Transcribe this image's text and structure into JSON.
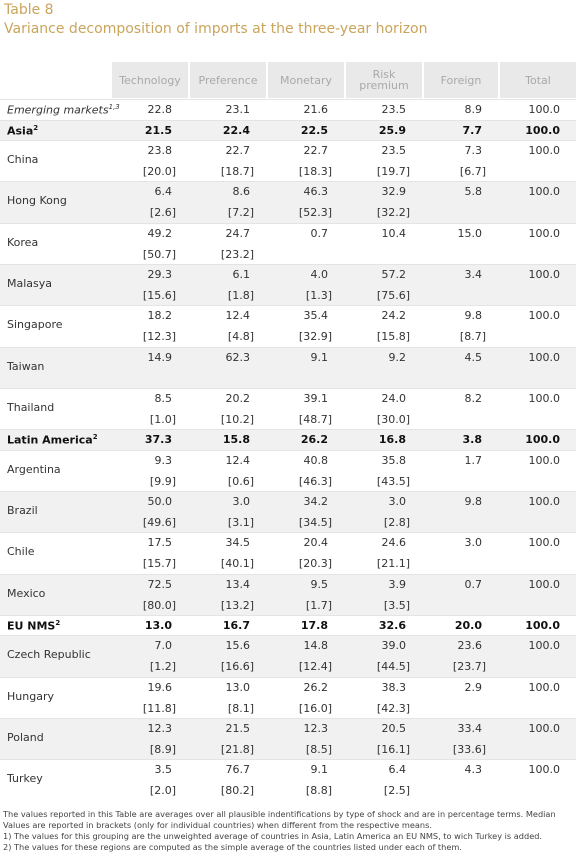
{
  "header": {
    "label": "Table 8",
    "title": "Variance decomposition of imports at the three-year horizon"
  },
  "table": {
    "columns": [
      "Technology",
      "Preference",
      "Monetary",
      "Risk premium",
      "Foreign",
      "Total"
    ],
    "rows": [
      {
        "name": "Emerging markets",
        "sup": "1,3",
        "style": "italic",
        "means": [
          "22.8",
          "23.1",
          "21.6",
          "23.5",
          "8.9",
          "100.0"
        ]
      },
      {
        "name": "Asia",
        "sup": "2",
        "style": "bold",
        "means": [
          "21.5",
          "22.4",
          "22.5",
          "25.9",
          "7.7",
          "100.0"
        ]
      },
      {
        "name": "China",
        "means": [
          "23.8",
          "22.7",
          "22.7",
          "23.5",
          "7.3",
          "100.0"
        ],
        "medians": [
          "[20.0]",
          "[18.7]",
          "[18.3]",
          "[19.7]",
          "[6.7]"
        ]
      },
      {
        "name": "Hong Kong",
        "means": [
          "6.4",
          "8.6",
          "46.3",
          "32.9",
          "5.8",
          "100.0"
        ],
        "medians": [
          "[2.6]",
          "[7.2]",
          "[52.3]",
          "[32.2]",
          null
        ]
      },
      {
        "name": "Korea",
        "means": [
          "49.2",
          "24.7",
          "0.7",
          "10.4",
          "15.0",
          "100.0"
        ],
        "medians": [
          "[50.7]",
          "[23.2]",
          null,
          null,
          null
        ]
      },
      {
        "name": "Malasya",
        "means": [
          "29.3",
          "6.1",
          "4.0",
          "57.2",
          "3.4",
          "100.0"
        ],
        "medians": [
          "[15.6]",
          "[1.8]",
          "[1.3]",
          "[75.6]",
          null
        ]
      },
      {
        "name": "Singapore",
        "means": [
          "18.2",
          "12.4",
          "35.4",
          "24.2",
          "9.8",
          "100.0"
        ],
        "medians": [
          "[12.3]",
          "[4.8]",
          "[32.9]",
          "[15.8]",
          "[8.7]"
        ]
      },
      {
        "name": "Taiwan",
        "means": [
          "14.9",
          "62.3",
          "9.1",
          "9.2",
          "4.5",
          "100.0"
        ],
        "medians": [
          null,
          null,
          null,
          null,
          null
        ]
      },
      {
        "name": "Thailand",
        "means": [
          "8.5",
          "20.2",
          "39.1",
          "24.0",
          "8.2",
          "100.0"
        ],
        "medians": [
          "[1.0]",
          "[10.2]",
          "[48.7]",
          "[30.0]",
          null
        ]
      },
      {
        "name": "Latin America",
        "sup": "2",
        "style": "bold",
        "means": [
          "37.3",
          "15.8",
          "26.2",
          "16.8",
          "3.8",
          "100.0"
        ]
      },
      {
        "name": "Argentina",
        "means": [
          "9.3",
          "12.4",
          "40.8",
          "35.8",
          "1.7",
          "100.0"
        ],
        "medians": [
          "[9.9]",
          "[0.6]",
          "[46.3]",
          "[43.5]",
          null
        ]
      },
      {
        "name": "Brazil",
        "means": [
          "50.0",
          "3.0",
          "34.2",
          "3.0",
          "9.8",
          "100.0"
        ],
        "medians": [
          "[49.6]",
          "[3.1]",
          "[34.5]",
          "[2.8]",
          null
        ]
      },
      {
        "name": "Chile",
        "means": [
          "17.5",
          "34.5",
          "20.4",
          "24.6",
          "3.0",
          "100.0"
        ],
        "medians": [
          "[15.7]",
          "[40.1]",
          "[20.3]",
          "[21.1]",
          null
        ]
      },
      {
        "name": "Mexico",
        "means": [
          "72.5",
          "13.4",
          "9.5",
          "3.9",
          "0.7",
          "100.0"
        ],
        "medians": [
          "[80.0]",
          "[13.2]",
          "[1.7]",
          "[3.5]",
          null
        ]
      },
      {
        "name": "EU NMS",
        "sup": "2",
        "style": "bold",
        "means": [
          "13.0",
          "16.7",
          "17.8",
          "32.6",
          "20.0",
          "100.0"
        ]
      },
      {
        "name": "Czech Republic",
        "means": [
          "7.0",
          "15.6",
          "14.8",
          "39.0",
          "23.6",
          "100.0"
        ],
        "medians": [
          "[1.2]",
          "[16.6]",
          "[12.4]",
          "[44.5]",
          "[23.7]"
        ]
      },
      {
        "name": "Hungary",
        "means": [
          "19.6",
          "13.0",
          "26.2",
          "38.3",
          "2.9",
          "100.0"
        ],
        "medians": [
          "[11.8]",
          "[8.1]",
          "[16.0]",
          "[42.3]",
          null
        ]
      },
      {
        "name": "Poland",
        "means": [
          "12.3",
          "21.5",
          "12.3",
          "20.5",
          "33.4",
          "100.0"
        ],
        "medians": [
          "[8.9]",
          "[21.8]",
          "[8.5]",
          "[16.1]",
          "[33.6]"
        ]
      },
      {
        "name": "Turkey",
        "means": [
          "3.5",
          "76.7",
          "9.1",
          "6.4",
          "4.3",
          "100.0"
        ],
        "medians": [
          "[2.0]",
          "[80.2]",
          "[8.8]",
          "[2.5]",
          null
        ]
      }
    ]
  },
  "notes": [
    "The values reported in this Table are averages over all plausible indentifications by type of shock and are in percentage terms. Median Values are reported in brackets (only for individual countries) when different from the respective means.",
    "1) The values for this grouping are the unweighted average of countries in Asia, Latin America an EU NMS, to wich Turkey is added.",
    "2) The values for these regions are computed as the simple average of the countries listed under each of them."
  ]
}
